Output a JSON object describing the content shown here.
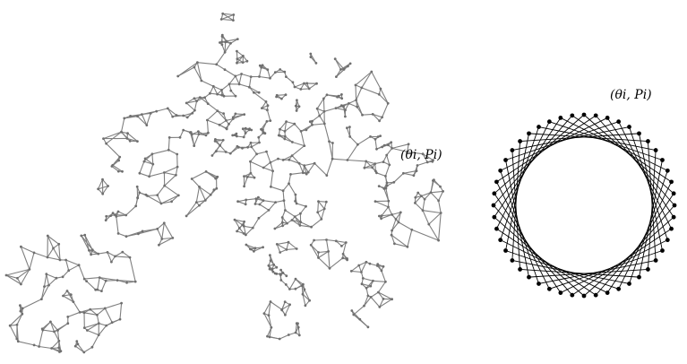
{
  "left_panel": {
    "annotation": "(θi, Pi)",
    "edge_color": "#7f7f7f",
    "node_color": "#6f6f6f"
  },
  "right_panel": {
    "annotation": "(θi, Pi)",
    "node_count": 48,
    "chord_step": 11,
    "edge_color": "#000000",
    "node_color": "#000000"
  }
}
